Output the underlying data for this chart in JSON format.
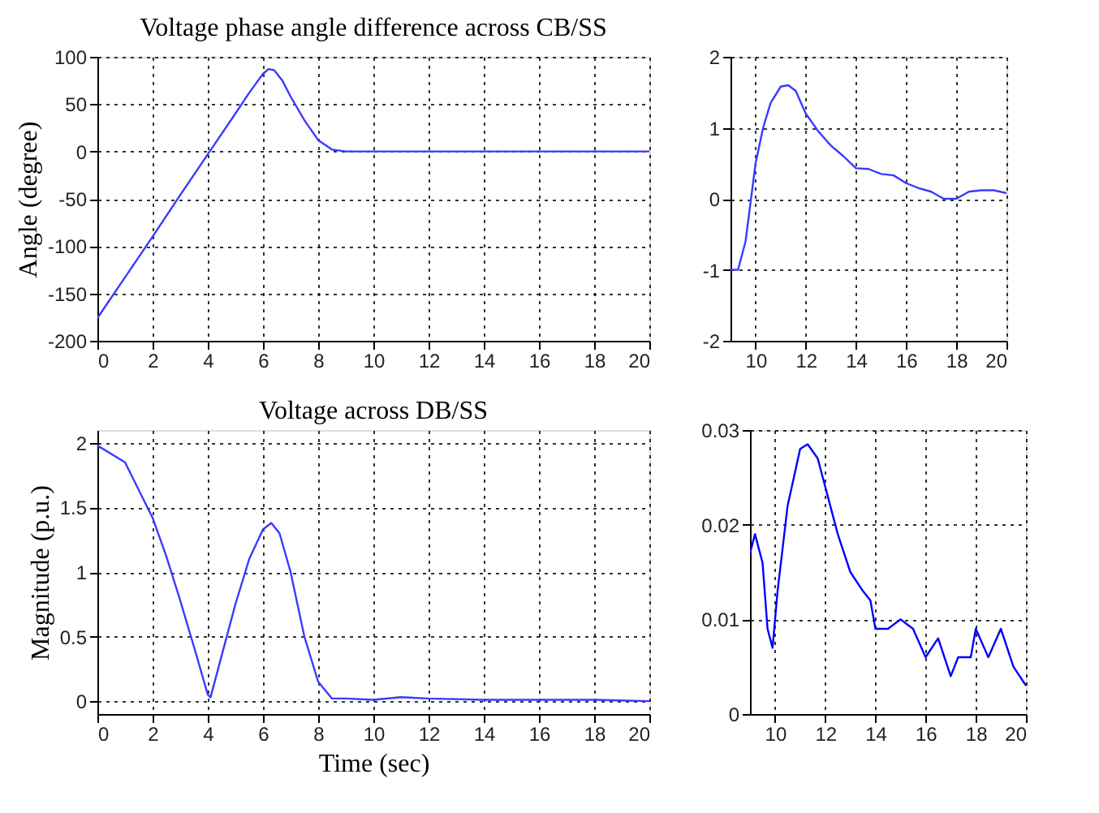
{
  "chart_data": [
    {
      "type": "line",
      "title": "Voltage phase angle difference across CB/SS",
      "ylabel": "Angle (degree)",
      "xlim": [
        0,
        20
      ],
      "xticks": [
        0,
        2,
        4,
        6,
        8,
        10,
        12,
        14,
        16,
        18,
        20
      ],
      "ylim": [
        -200,
        100
      ],
      "yticks": [
        -200,
        -150,
        -100,
        -50,
        0,
        50,
        100
      ],
      "grid": true,
      "marker": "none",
      "line_style": "solid",
      "series": [
        {
          "color": "#3a3aff",
          "x": [
            0,
            1,
            2,
            3,
            4,
            5,
            5.5,
            6,
            6.2,
            6.4,
            6.7,
            7,
            7.5,
            8,
            8.5,
            9,
            10,
            12,
            14,
            16,
            18,
            20
          ],
          "values": [
            -176,
            -133,
            -90,
            -46,
            -3,
            40,
            62,
            82,
            87,
            86,
            75,
            58,
            33,
            12,
            2,
            0,
            0,
            0,
            0,
            0,
            0,
            0
          ]
        }
      ]
    },
    {
      "type": "line",
      "xlim": [
        9,
        20
      ],
      "xticks": [
        10,
        12,
        14,
        16,
        18,
        20
      ],
      "ylim": [
        -2,
        2
      ],
      "yticks": [
        -2,
        -1,
        0,
        1,
        2
      ],
      "grid": true,
      "marker": "none",
      "line_style": "solid",
      "series": [
        {
          "color": "#3a3aff",
          "x": [
            9,
            9.3,
            9.6,
            10,
            10.3,
            10.6,
            11,
            11.3,
            11.6,
            12,
            12.5,
            13,
            13.5,
            14,
            14.5,
            15,
            15.5,
            16,
            16.5,
            17,
            17.5,
            18,
            18.5,
            19,
            19.5,
            20
          ],
          "values": [
            -1,
            -1,
            -0.6,
            0.5,
            1,
            1.35,
            1.58,
            1.6,
            1.52,
            1.2,
            0.95,
            0.75,
            0.6,
            0.43,
            0.42,
            0.35,
            0.33,
            0.22,
            0.15,
            0.1,
            0,
            0,
            0.1,
            0.12,
            0.12,
            0.08
          ]
        }
      ]
    },
    {
      "type": "line",
      "title": "Voltage across DB/SS",
      "xlabel": "Time (sec)",
      "ylabel": "Magnitude (p.u.)",
      "xlim": [
        0,
        20
      ],
      "xticks": [
        0,
        2,
        4,
        6,
        8,
        10,
        12,
        14,
        16,
        18,
        20
      ],
      "ylim": [
        -0.1,
        2.1
      ],
      "yticks": [
        0,
        0.5,
        1,
        1.5,
        2
      ],
      "grid": true,
      "marker": "none",
      "line_style": "solid",
      "series": [
        {
          "color": "#3a3aff",
          "x": [
            0,
            1,
            2,
            2.5,
            3,
            3.5,
            4,
            4.1,
            4.5,
            5,
            5.5,
            6,
            6.3,
            6.6,
            7,
            7.5,
            8,
            8.5,
            9,
            10,
            11,
            12,
            14,
            16,
            18,
            20
          ],
          "values": [
            1.98,
            1.85,
            1.42,
            1.12,
            0.78,
            0.42,
            0.05,
            0.03,
            0.35,
            0.75,
            1.1,
            1.33,
            1.38,
            1.3,
            1,
            0.5,
            0.15,
            0.02,
            0.02,
            0.01,
            0.03,
            0.02,
            0.01,
            0.01,
            0.01,
            0
          ]
        }
      ]
    },
    {
      "type": "line",
      "xlim": [
        9,
        20
      ],
      "xticks": [
        10,
        12,
        14,
        16,
        18,
        20
      ],
      "ylim": [
        0,
        0.03
      ],
      "yticks": [
        0,
        0.01,
        0.02,
        0.03
      ],
      "grid": true,
      "marker": "none",
      "line_style": "solid",
      "series": [
        {
          "color": "#0000ff",
          "x": [
            9,
            9.2,
            9.5,
            9.7,
            9.9,
            10.1,
            10.5,
            11,
            11.3,
            11.7,
            12,
            12.5,
            13,
            13.5,
            13.8,
            14,
            14.5,
            15,
            15.5,
            16,
            16.5,
            17,
            17.3,
            17.8,
            18,
            18.5,
            19,
            19.5,
            20
          ],
          "values": [
            0.017,
            0.019,
            0.016,
            0.009,
            0.007,
            0.013,
            0.022,
            0.028,
            0.0285,
            0.027,
            0.024,
            0.019,
            0.015,
            0.013,
            0.012,
            0.009,
            0.009,
            0.01,
            0.009,
            0.006,
            0.008,
            0.004,
            0.006,
            0.006,
            0.009,
            0.006,
            0.009,
            0.005,
            0.003
          ]
        }
      ]
    }
  ]
}
